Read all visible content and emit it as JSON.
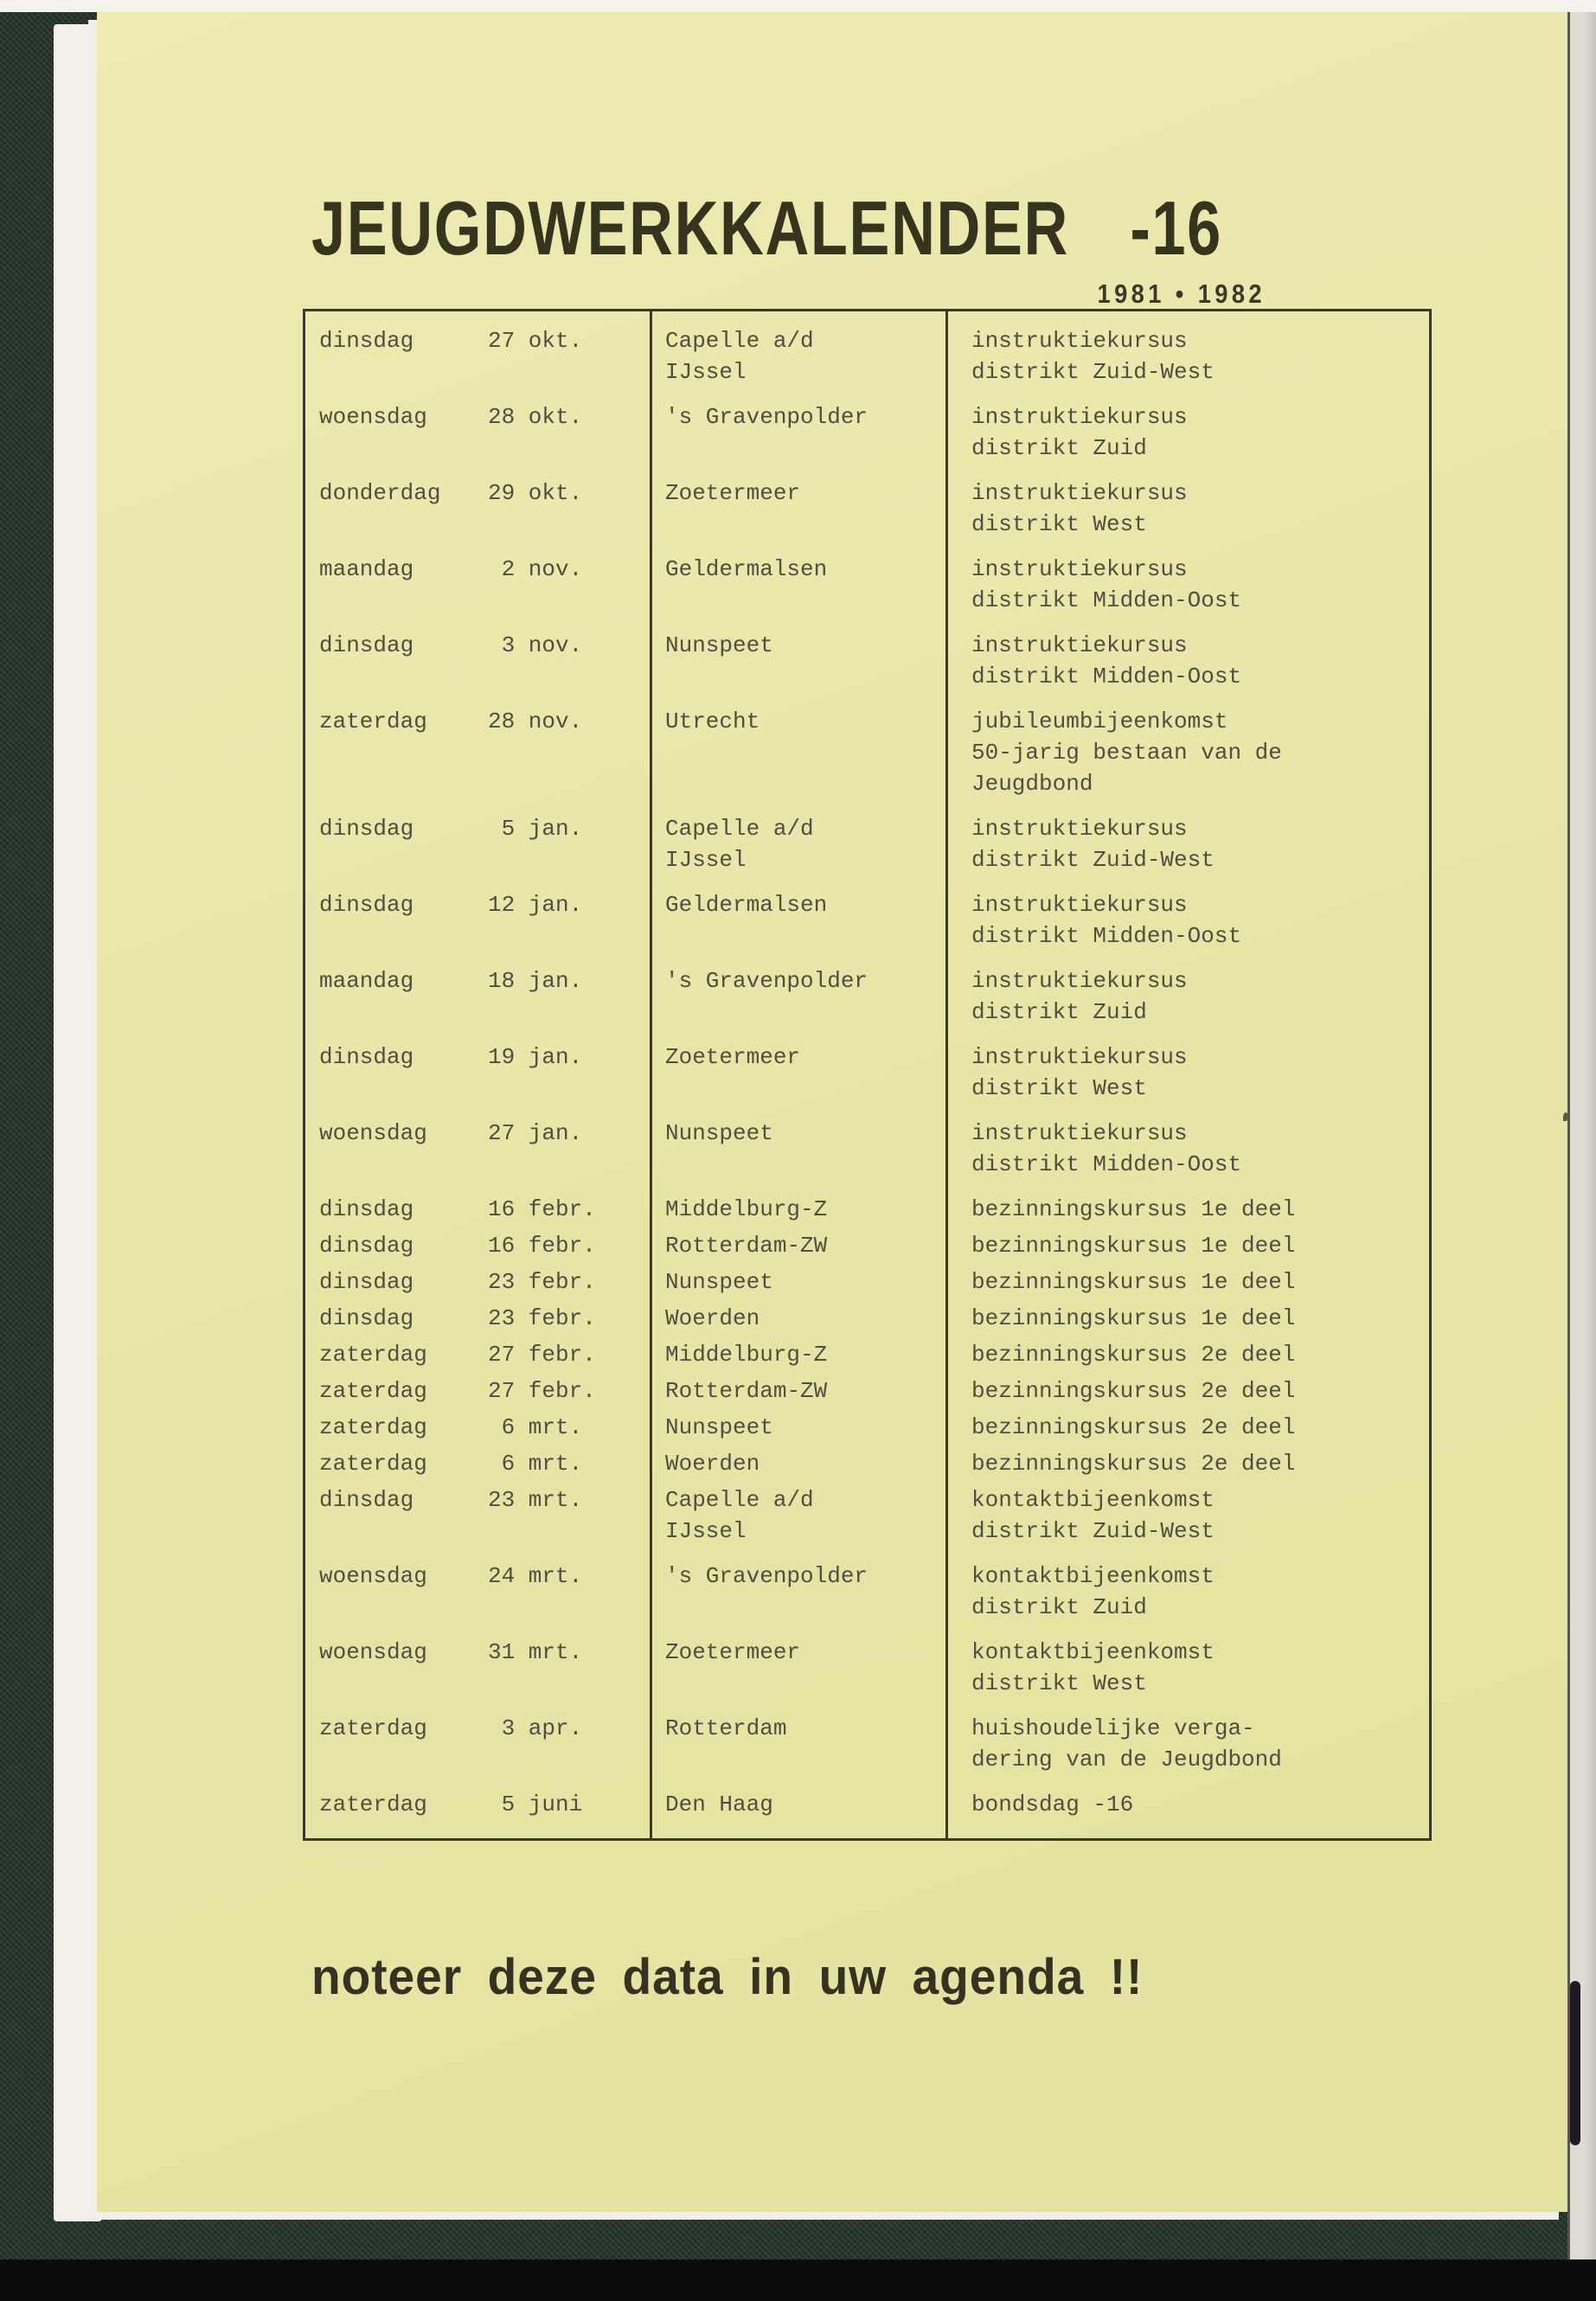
{
  "page": {
    "title": "JEUGDWERKKALENDER",
    "title_suffix": "-16",
    "years": "1981 • 1982",
    "footer_note": "noteer deze data in uw agenda !!"
  },
  "colors": {
    "paper": "#e8e6a8",
    "binder_green": "#26352c",
    "ink": "#4f4e41",
    "title_ink": "#35341f"
  },
  "calendar": {
    "rows": [
      {
        "day": "dinsdag",
        "date": "27 okt.",
        "place": [
          "Capelle a/d",
          "IJssel"
        ],
        "event": [
          "instruktiekursus",
          "distrikt Zuid-West"
        ]
      },
      {
        "day": "woensdag",
        "date": "28 okt.",
        "place": [
          "'s Gravenpolder"
        ],
        "event": [
          "instruktiekursus",
          "distrikt Zuid"
        ]
      },
      {
        "day": "donderdag",
        "date": "29 okt.",
        "place": [
          "Zoetermeer"
        ],
        "event": [
          "instruktiekursus",
          "distrikt West"
        ]
      },
      {
        "day": "maandag",
        "date": " 2 nov.",
        "place": [
          "Geldermalsen"
        ],
        "event": [
          "instruktiekursus",
          "distrikt Midden-Oost"
        ]
      },
      {
        "day": "dinsdag",
        "date": " 3 nov.",
        "place": [
          "Nunspeet"
        ],
        "event": [
          "instruktiekursus",
          "distrikt Midden-Oost"
        ]
      },
      {
        "day": "zaterdag",
        "date": "28 nov.",
        "place": [
          "Utrecht"
        ],
        "event": [
          "jubileumbijeenkomst",
          "50-jarig bestaan van de",
          "Jeugdbond"
        ]
      },
      {
        "day": "dinsdag",
        "date": " 5 jan.",
        "place": [
          "Capelle a/d",
          "IJssel"
        ],
        "event": [
          "instruktiekursus",
          "distrikt Zuid-West"
        ]
      },
      {
        "day": "dinsdag",
        "date": "12 jan.",
        "place": [
          "Geldermalsen"
        ],
        "event": [
          "instruktiekursus",
          "distrikt Midden-Oost"
        ]
      },
      {
        "day": "maandag",
        "date": "18 jan.",
        "place": [
          "'s Gravenpolder"
        ],
        "event": [
          "instruktiekursus",
          "distrikt Zuid"
        ]
      },
      {
        "day": "dinsdag",
        "date": "19 jan.",
        "place": [
          "Zoetermeer"
        ],
        "event": [
          "instruktiekursus",
          "distrikt West"
        ]
      },
      {
        "day": "woensdag",
        "date": "27 jan.",
        "place": [
          "Nunspeet"
        ],
        "event": [
          "instruktiekursus",
          "distrikt Midden-Oost"
        ]
      },
      {
        "day": "dinsdag",
        "date": "16 febr.",
        "place": [
          "Middelburg-Z"
        ],
        "event": [
          "bezinningskursus 1e deel"
        ]
      },
      {
        "day": "dinsdag",
        "date": "16 febr.",
        "place": [
          "Rotterdam-ZW"
        ],
        "event": [
          "bezinningskursus 1e deel"
        ]
      },
      {
        "day": "dinsdag",
        "date": "23 febr.",
        "place": [
          "Nunspeet"
        ],
        "event": [
          "bezinningskursus 1e deel"
        ]
      },
      {
        "day": "dinsdag",
        "date": "23 febr.",
        "place": [
          "Woerden"
        ],
        "event": [
          "bezinningskursus 1e deel"
        ]
      },
      {
        "day": "zaterdag",
        "date": "27 febr.",
        "place": [
          "Middelburg-Z"
        ],
        "event": [
          "bezinningskursus 2e deel"
        ]
      },
      {
        "day": "zaterdag",
        "date": "27 febr.",
        "place": [
          "Rotterdam-ZW"
        ],
        "event": [
          "bezinningskursus 2e deel"
        ]
      },
      {
        "day": "zaterdag",
        "date": " 6 mrt.",
        "place": [
          "Nunspeet"
        ],
        "event": [
          "bezinningskursus 2e deel"
        ]
      },
      {
        "day": "zaterdag",
        "date": " 6 mrt.",
        "place": [
          "Woerden"
        ],
        "event": [
          "bezinningskursus 2e deel"
        ]
      },
      {
        "day": "dinsdag",
        "date": "23 mrt.",
        "place": [
          "Capelle a/d",
          "IJssel"
        ],
        "event": [
          "kontaktbijeenkomst",
          "distrikt Zuid-West"
        ]
      },
      {
        "day": "woensdag",
        "date": "24 mrt.",
        "place": [
          "'s Gravenpolder"
        ],
        "event": [
          "kontaktbijeenkomst",
          "distrikt Zuid"
        ]
      },
      {
        "day": "woensdag",
        "date": "31 mrt.",
        "place": [
          "Zoetermeer"
        ],
        "event": [
          "kontaktbijeenkomst",
          "distrikt West"
        ]
      },
      {
        "day": "zaterdag",
        "date": " 3 apr.",
        "place": [
          "Rotterdam"
        ],
        "event": [
          "huishoudelijke verga-",
          "dering van de Jeugdbond"
        ]
      },
      {
        "day": "zaterdag",
        "date": " 5 juni",
        "place": [
          "Den Haag"
        ],
        "event": [
          "bondsdag -16"
        ]
      }
    ]
  }
}
